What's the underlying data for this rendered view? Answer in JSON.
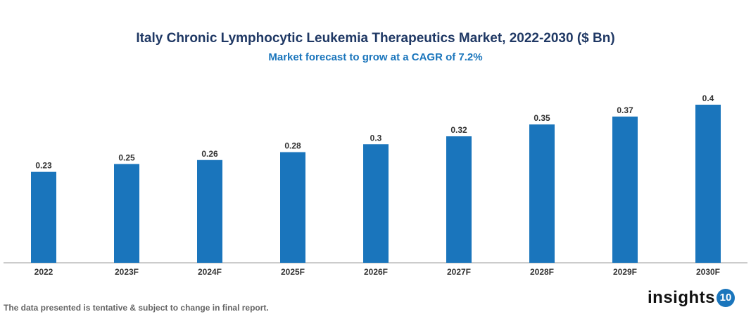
{
  "chart_data": {
    "type": "bar",
    "title": "Italy Chronic Lymphocytic Leukemia Therapeutics Market, 2022-2030 ($ Bn)",
    "subtitle": "Market forecast to grow at a CAGR of 7.2%",
    "categories": [
      "2022",
      "2023F",
      "2024F",
      "2025F",
      "2026F",
      "2027F",
      "2028F",
      "2029F",
      "2030F"
    ],
    "values": [
      0.23,
      0.25,
      0.26,
      0.28,
      0.3,
      0.32,
      0.35,
      0.37,
      0.4
    ],
    "data_labels": [
      "0.23",
      "0.25",
      "0.26",
      "0.28",
      "0.3",
      "0.32",
      "0.35",
      "0.37",
      "0.4"
    ],
    "xlabel": "",
    "ylabel": "",
    "ylim": [
      0,
      0.4
    ],
    "grid": false,
    "bar_color": "#1a75bc"
  },
  "footer": {
    "note": "The data presented is tentative & subject to change in final report.",
    "logo_text": "insights",
    "logo_number": "10"
  }
}
